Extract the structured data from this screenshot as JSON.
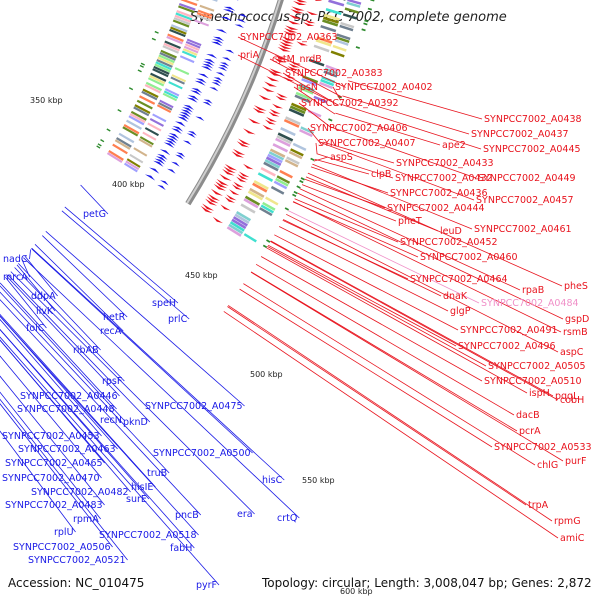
{
  "title": "Synechococcus sp. PCC 7002, complete genome",
  "accession": "Accession: NC_010475",
  "topology": "Topology: circular; Length: 3,008,047 bp; Genes: 2,872",
  "colors": {
    "backbone": "#8c8c8c",
    "forward": "#e8141e",
    "reverse": "#1a1ae6",
    "highlight": "#f090c8",
    "marker": "#2e8b2e"
  },
  "kbp_markers": [
    {
      "label": "350 kbp",
      "position_kbp": 350
    },
    {
      "label": "400 kbp",
      "position_kbp": 400
    },
    {
      "label": "450 kbp",
      "position_kbp": 450
    },
    {
      "label": "500 kbp",
      "position_kbp": 500
    },
    {
      "label": "550 kbp",
      "position_kbp": 550
    },
    {
      "label": "600 kbp",
      "position_kbp": 600
    }
  ],
  "forward_labels": [
    "SYNPCC7002_A0363",
    "priA",
    "cytM_nrdB",
    "SYNPCC7002_A0383",
    "rpsN",
    "SYNPCC7002_A0402",
    "SYNPCC7002_A0392",
    "SYNPCC7002_A0406",
    "SYNPCC7002_A0407",
    "aspS",
    "SYNPCC7002_A0438",
    "SYNPCC7002_A0437",
    "ape2",
    "SYNPCC7002_A0445",
    "SYNPCC7002_A0433",
    "clpB",
    "SYNPCC7002_A0432",
    "SYNPCC7002_A0449",
    "SYNPCC7002_A0436",
    "SYNPCC7002_A0444",
    "SYNPCC7002_A0457",
    "pheT",
    "leuD",
    "SYNPCC7002_A0461",
    "SYNPCC7002_A0452",
    "SYNPCC7002_A0460",
    "SYNPCC7002_A0464",
    "rpaB",
    "pheS",
    "dnaK",
    "glgP",
    "SYNPCC7002_A0484",
    "gspD",
    "SYNPCC7002_A0491",
    "rsmB",
    "SYNPCC7002_A0496",
    "aspC",
    "SYNPCC7002_A0505",
    "SYNPCC7002_A0510",
    "ispH",
    "pqqL",
    "cobH",
    "dacB",
    "pcrA",
    "SYNPCC7002_A0533",
    "chlG",
    "purF",
    "trpA",
    "rpmG",
    "amiC"
  ],
  "reverse_labels": [
    "petG",
    "nadC",
    "mrcA",
    "ddpA",
    "livK",
    "folC",
    "hetR",
    "speH",
    "recA",
    "prlC",
    "ribAB",
    "rpsF",
    "SYNPCC7002_A0446",
    "SYNPCC7002_A0448",
    "SYNPCC7002_A0475",
    "recN",
    "pknD",
    "SYNPCC7002_A0453",
    "SYNPCC7002_A0463",
    "SYNPCC7002_A0465",
    "SYNPCC7002_A0500",
    "SYNPCC7002_A0470",
    "hisC",
    "truB",
    "hisIE",
    "SYNPCC7002_A0482",
    "surE",
    "SYNPCC7002_A0483",
    "rpmA",
    "pncB",
    "era",
    "rplU",
    "crtQ",
    "SYNPCC7002_A0518",
    "SYNPCC7002_A0506",
    "fabH",
    "SYNPCC7002_A0521",
    "pyrF"
  ]
}
